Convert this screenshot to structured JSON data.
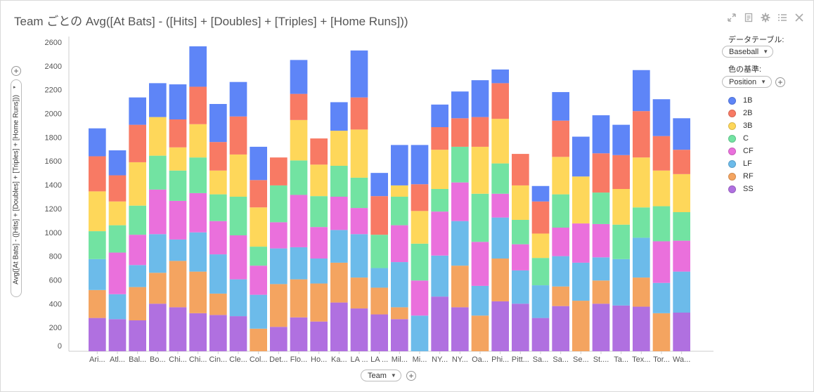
{
  "title": "Team ごとの Avg([At Bats] - ([Hits] + [Doubles] + [Triples] + [Home Runs]))",
  "toolbar": {
    "expand_icon": "expand-icon",
    "doc_icon": "document-icon",
    "settings_icon": "gear-icon",
    "list_icon": "list-icon",
    "close_icon": "close-icon"
  },
  "datatable": {
    "label": "データテーブル:",
    "value": "Baseball"
  },
  "colorby": {
    "label": "色の基準:",
    "value": "Position"
  },
  "axis": {
    "y_title": "Avg([At Bats] - ([Hits] + [Doubles] + [Triples] + [Home Runs]))",
    "x_title": "Team"
  },
  "chart_data": {
    "type": "bar",
    "stacked": true,
    "ylim": [
      0,
      2600
    ],
    "yticks": [
      0,
      200,
      400,
      600,
      800,
      1000,
      1200,
      1400,
      1600,
      1800,
      2000,
      2200,
      2400,
      2600
    ],
    "categories": [
      "Ari...",
      "Atl...",
      "Bal...",
      "Bo...",
      "Chi...",
      "Chi...",
      "Cin...",
      "Cle...",
      "Col...",
      "Det...",
      "Flo...",
      "Ho...",
      "Ka...",
      "LA ...",
      "LA ...",
      "Mil...",
      "Mi...",
      "NY...",
      "NY...",
      "Oa...",
      "Phi...",
      "Pitt...",
      "Sa...",
      "Sa...",
      "Se...",
      "St....",
      "Ta...",
      "Tex...",
      "Tor...",
      "Wa..."
    ],
    "series": [
      {
        "name": "SS",
        "color": "#b070e0",
        "values": [
          280,
          270,
          260,
          400,
          370,
          320,
          305,
          295,
          0,
          205,
          285,
          250,
          410,
          360,
          310,
          270,
          0,
          460,
          370,
          0,
          420,
          400,
          280,
          380,
          0,
          400,
          385,
          375,
          0,
          325
        ]
      },
      {
        "name": "RF",
        "color": "#f4a460",
        "values": [
          235,
          0,
          280,
          260,
          390,
          350,
          180,
          0,
          190,
          360,
          320,
          320,
          335,
          260,
          225,
          100,
          0,
          0,
          350,
          300,
          360,
          0,
          0,
          165,
          425,
          195,
          0,
          245,
          320,
          0
        ]
      },
      {
        "name": "LF",
        "color": "#6cbbea",
        "values": [
          260,
          210,
          185,
          325,
          180,
          330,
          330,
          310,
          285,
          300,
          270,
          210,
          275,
          365,
          165,
          380,
          300,
          345,
          375,
          250,
          345,
          280,
          275,
          255,
          320,
          195,
          390,
          335,
          255,
          345
        ]
      },
      {
        "name": "CF",
        "color": "#ea70dc",
        "values": [
          0,
          350,
          255,
          375,
          325,
          330,
          280,
          370,
          245,
          220,
          440,
          265,
          280,
          220,
          0,
          310,
          295,
          370,
          325,
          370,
          200,
          220,
          0,
          240,
          330,
          280,
          0,
          0,
          350,
          260
        ]
      },
      {
        "name": "C",
        "color": "#72e3a2",
        "values": [
          235,
          230,
          245,
          285,
          255,
          300,
          225,
          325,
          160,
          310,
          290,
          260,
          260,
          255,
          280,
          240,
          310,
          190,
          300,
          405,
          255,
          205,
          230,
          280,
          0,
          265,
          290,
          255,
          295,
          240
        ]
      },
      {
        "name": "3B",
        "color": "#fed75a",
        "values": [
          335,
          200,
          365,
          325,
          195,
          280,
          200,
          355,
          330,
          0,
          340,
          265,
          295,
          405,
          0,
          95,
          275,
          330,
          0,
          395,
          375,
          290,
          205,
          315,
          395,
          0,
          300,
          420,
          300,
          320
        ]
      },
      {
        "name": "2B",
        "color": "#f87a64",
        "values": [
          295,
          220,
          315,
          0,
          235,
          315,
          240,
          320,
          230,
          235,
          220,
          220,
          0,
          270,
          325,
          0,
          225,
          190,
          240,
          250,
          300,
          265,
          270,
          305,
          0,
          330,
          285,
          390,
          290,
          205
        ]
      },
      {
        "name": "1B",
        "color": "#5e85f7",
        "values": [
          235,
          210,
          230,
          285,
          295,
          340,
          320,
          290,
          280,
          0,
          285,
          0,
          240,
          395,
          195,
          340,
          330,
          190,
          225,
          310,
          115,
          0,
          130,
          240,
          335,
          320,
          255,
          345,
          310,
          265
        ]
      }
    ]
  }
}
